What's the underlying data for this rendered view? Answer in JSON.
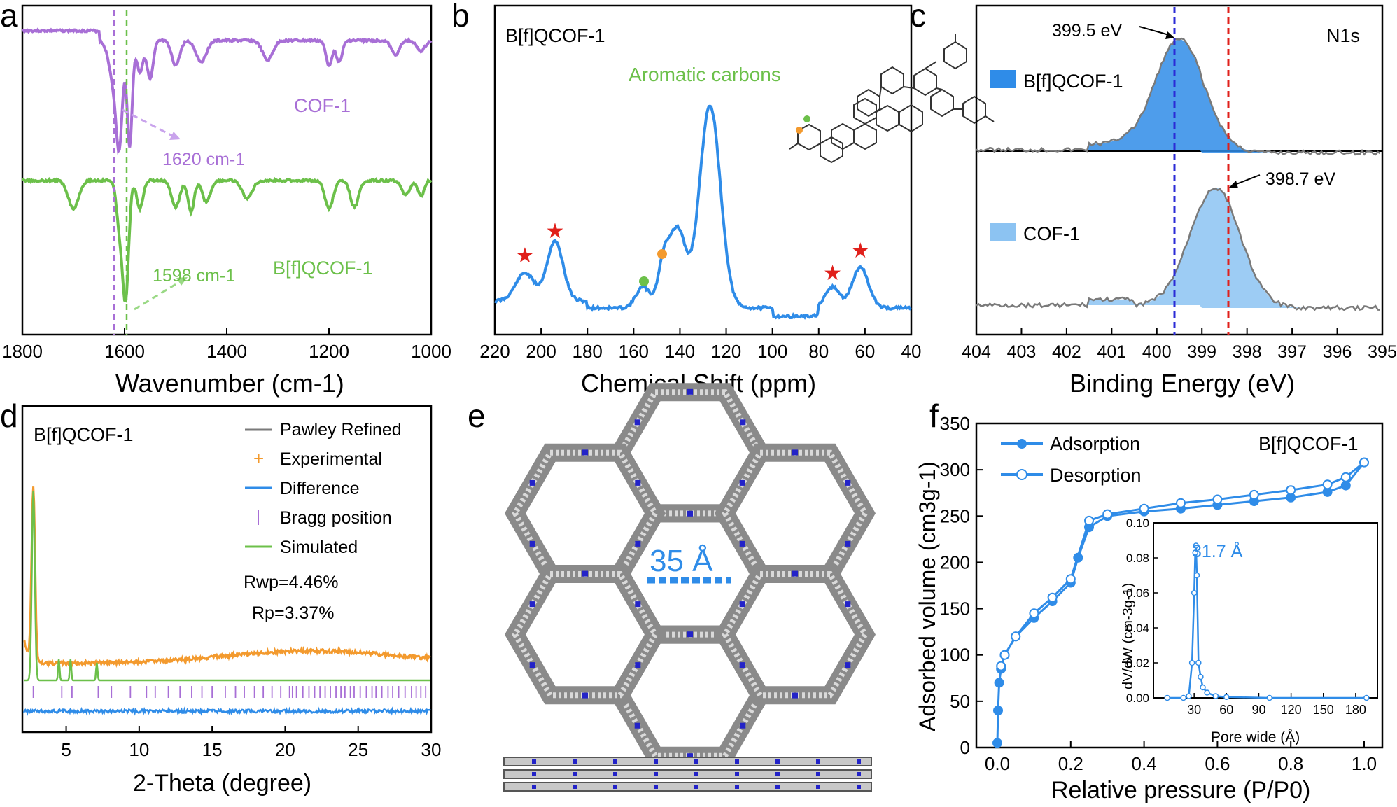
{
  "colors": {
    "purple": "#a86fd6",
    "green": "#6cc04a",
    "blue": "#2f8ce8",
    "lightblue": "#8cc3f2",
    "gray": "#7a7a7a",
    "orange": "#f39a2e",
    "red": "#e0201b",
    "darkblue": "#2b2bd6"
  },
  "panels": {
    "a": {
      "label": "a"
    },
    "b": {
      "label": "b"
    },
    "c": {
      "label": "c"
    },
    "d": {
      "label": "d"
    },
    "e": {
      "label": "e"
    },
    "f": {
      "label": "f"
    }
  },
  "chart_data": [
    {
      "id": "a",
      "type": "line",
      "xlabel": "Wavenumber (cm-1)",
      "xlim": [
        1800,
        1000
      ],
      "xticks": [
        "1800",
        "1600",
        "1400",
        "1200",
        "1000"
      ],
      "series": [
        {
          "name": "COF-1",
          "peak_label": "1620 cm-1"
        },
        {
          "name": "B[f]QCOF-1",
          "peak_label": "1598 cm-1"
        }
      ],
      "vlines": [
        1620,
        1598
      ]
    },
    {
      "id": "b",
      "type": "line",
      "title": "B[f]QCOF-1",
      "xlabel": "Chemical Shift (ppm)",
      "xlim": [
        220,
        40
      ],
      "xticks": [
        "220",
        "200",
        "180",
        "160",
        "140",
        "120",
        "100",
        "80",
        "60",
        "40"
      ],
      "annotation": "Aromatic carbons",
      "peaks_ppm": [
        207,
        194,
        156,
        147,
        141,
        127,
        74,
        62
      ]
    },
    {
      "id": "c",
      "type": "line",
      "title": "N1s",
      "xlabel": "Binding Energy (eV)",
      "xlim": [
        404,
        395
      ],
      "xticks": [
        "404",
        "403",
        "402",
        "401",
        "400",
        "399",
        "398",
        "397",
        "396",
        "395"
      ],
      "series": [
        {
          "name": "B[f]QCOF-1",
          "peak_label": "399.5 eV",
          "peak": 399.5
        },
        {
          "name": "COF-1",
          "peak_label": "398.7 eV",
          "peak": 398.7
        }
      ]
    },
    {
      "id": "d",
      "type": "line",
      "title": "B[f]QCOF-1",
      "xlabel": "2-Theta (degree)",
      "xlim": [
        2,
        30
      ],
      "xticks": [
        "5",
        "10",
        "15",
        "20",
        "25",
        "30"
      ],
      "legend": [
        "Pawley Refined",
        "Experimental",
        "Difference",
        "Bragg position",
        "Simulated"
      ],
      "stats": [
        "Rwp=4.46%",
        "Rp=3.37%"
      ]
    },
    {
      "id": "f",
      "type": "line",
      "title": "B[f]QCOF-1",
      "xlabel": "Relative pressure (P/P0)",
      "ylabel": "Adsorbed volume (cm3g-1)",
      "xlim": [
        0,
        1.0
      ],
      "ylim": [
        0,
        350
      ],
      "xticks": [
        "0.0",
        "0.2",
        "0.4",
        "0.6",
        "0.8",
        "1.0"
      ],
      "yticks": [
        "0",
        "50",
        "100",
        "150",
        "200",
        "250",
        "300",
        "350"
      ],
      "series": [
        {
          "name": "Adsorption",
          "x": [
            0.0,
            0.002,
            0.005,
            0.01,
            0.02,
            0.05,
            0.1,
            0.15,
            0.2,
            0.22,
            0.25,
            0.3,
            0.4,
            0.5,
            0.6,
            0.7,
            0.8,
            0.9,
            0.95,
            1.0
          ],
          "y": [
            5,
            40,
            70,
            85,
            100,
            120,
            140,
            158,
            178,
            205,
            238,
            250,
            255,
            258,
            262,
            266,
            270,
            276,
            283,
            308
          ]
        },
        {
          "name": "Desorption",
          "x": [
            1.0,
            0.95,
            0.9,
            0.8,
            0.7,
            0.6,
            0.5,
            0.4,
            0.3,
            0.25,
            0.2,
            0.15,
            0.1,
            0.05,
            0.02,
            0.01
          ],
          "y": [
            308,
            292,
            284,
            278,
            273,
            268,
            264,
            258,
            252,
            245,
            182,
            162,
            145,
            120,
            100,
            88
          ]
        }
      ],
      "inset": {
        "xlabel": "Pore wide (Å)",
        "ylabel": "dV/dW (cm-3g-1)",
        "xticks": [
          "30",
          "60",
          "90",
          "120",
          "150",
          "180"
        ],
        "yticks": [
          "0.00",
          "0.02",
          "0.04",
          "0.06",
          "0.08",
          "0.10"
        ],
        "peak_label": "31.7 Å",
        "x": [
          5,
          20,
          25,
          28,
          30,
          31,
          31.7,
          32.5,
          34,
          36,
          38,
          42,
          50,
          60,
          100,
          190
        ],
        "y": [
          0,
          0,
          0.001,
          0.02,
          0.06,
          0.083,
          0.087,
          0.07,
          0.02,
          0.012,
          0.006,
          0.003,
          0.001,
          0.0005,
          0,
          0
        ]
      }
    }
  ],
  "e": {
    "pore_label": "35 Å"
  }
}
